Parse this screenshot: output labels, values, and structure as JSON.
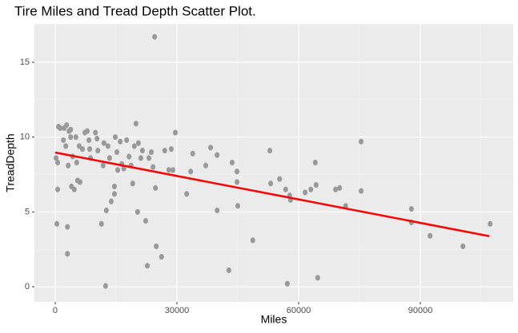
{
  "chart_data": {
    "type": "scatter",
    "title": "Tire Miles and Tread Depth Scatter Plot.",
    "x_label": "Miles",
    "y_label": "TreadDepth",
    "color": "#999999",
    "x": [
      200,
      600,
      400,
      600,
      800,
      1200,
      2000,
      2200,
      2600,
      2800,
      3000,
      3000,
      3200,
      3400,
      3800,
      3800,
      4000,
      4300,
      4700,
      5100,
      5300,
      5500,
      5900,
      6100,
      6700,
      7300,
      7900,
      8300,
      8500,
      8700,
      9900,
      10300,
      10500,
      11400,
      11800,
      12000,
      12600,
      12400,
      13000,
      13400,
      13800,
      14600,
      14600,
      14800,
      15200,
      15400,
      16000,
      16400,
      16900,
      17600,
      18200,
      18700,
      19100,
      19500,
      19900,
      20300,
      20500,
      21100,
      21500,
      22300,
      22700,
      23100,
      23700,
      24100,
      24500,
      24700,
      24900,
      26200,
      27000,
      28000,
      28600,
      29000,
      29600,
      32400,
      33400,
      33900,
      37100,
      38300,
      39900,
      39900,
      42800,
      43600,
      44800,
      44800,
      45000,
      48700,
      52900,
      53100,
      55300,
      56800,
      57200,
      57800,
      58000,
      61600,
      63000,
      64100,
      64300,
      64700,
      69100,
      70100,
      71600,
      75400,
      75400,
      87800,
      87800,
      92400,
      100500,
      107200
    ],
    "values": [
      8.6,
      8.3,
      4.2,
      6.5,
      10.7,
      10.6,
      9.8,
      10.6,
      9.4,
      10.8,
      4.0,
      2.2,
      8.1,
      10.4,
      10.5,
      10.0,
      6.7,
      8.7,
      6.5,
      10.0,
      8.3,
      7.1,
      9.4,
      7.0,
      9.2,
      10.3,
      10.4,
      9.8,
      9.2,
      8.6,
      10.3,
      9.9,
      9.1,
      4.2,
      8.1,
      9.6,
      5.1,
      0.05,
      9.4,
      8.6,
      5.7,
      6.2,
      6.7,
      10.0,
      9.0,
      7.8,
      9.7,
      8.2,
      7.9,
      9.8,
      8.7,
      8.1,
      6.9,
      9.4,
      10.9,
      5.0,
      9.6,
      8.6,
      9.1,
      4.4,
      1.4,
      8.6,
      9.0,
      8.0,
      16.7,
      6.6,
      2.7,
      2.0,
      9.1,
      7.8,
      9.2,
      7.8,
      10.3,
      6.2,
      7.7,
      8.9,
      8.1,
      9.3,
      8.8,
      5.1,
      1.1,
      8.3,
      7.7,
      7.0,
      5.4,
      3.1,
      9.1,
      6.9,
      7.2,
      6.5,
      0.2,
      6.1,
      5.8,
      6.3,
      6.5,
      8.3,
      6.8,
      0.6,
      6.5,
      6.6,
      5.4,
      6.4,
      9.7,
      5.2,
      4.3,
      3.4,
      2.7,
      4.2
    ],
    "fit": {
      "color": "#ff0000",
      "x": [
        0,
        107000
      ],
      "y": [
        8.97,
        3.38
      ]
    },
    "xlim": [
      -5131,
      112889
    ],
    "ylim": [
      -1.01,
      17.56
    ],
    "xticks": [
      0,
      30000,
      60000,
      90000
    ],
    "yticks": [
      0,
      5,
      10,
      15
    ],
    "grid": true
  }
}
